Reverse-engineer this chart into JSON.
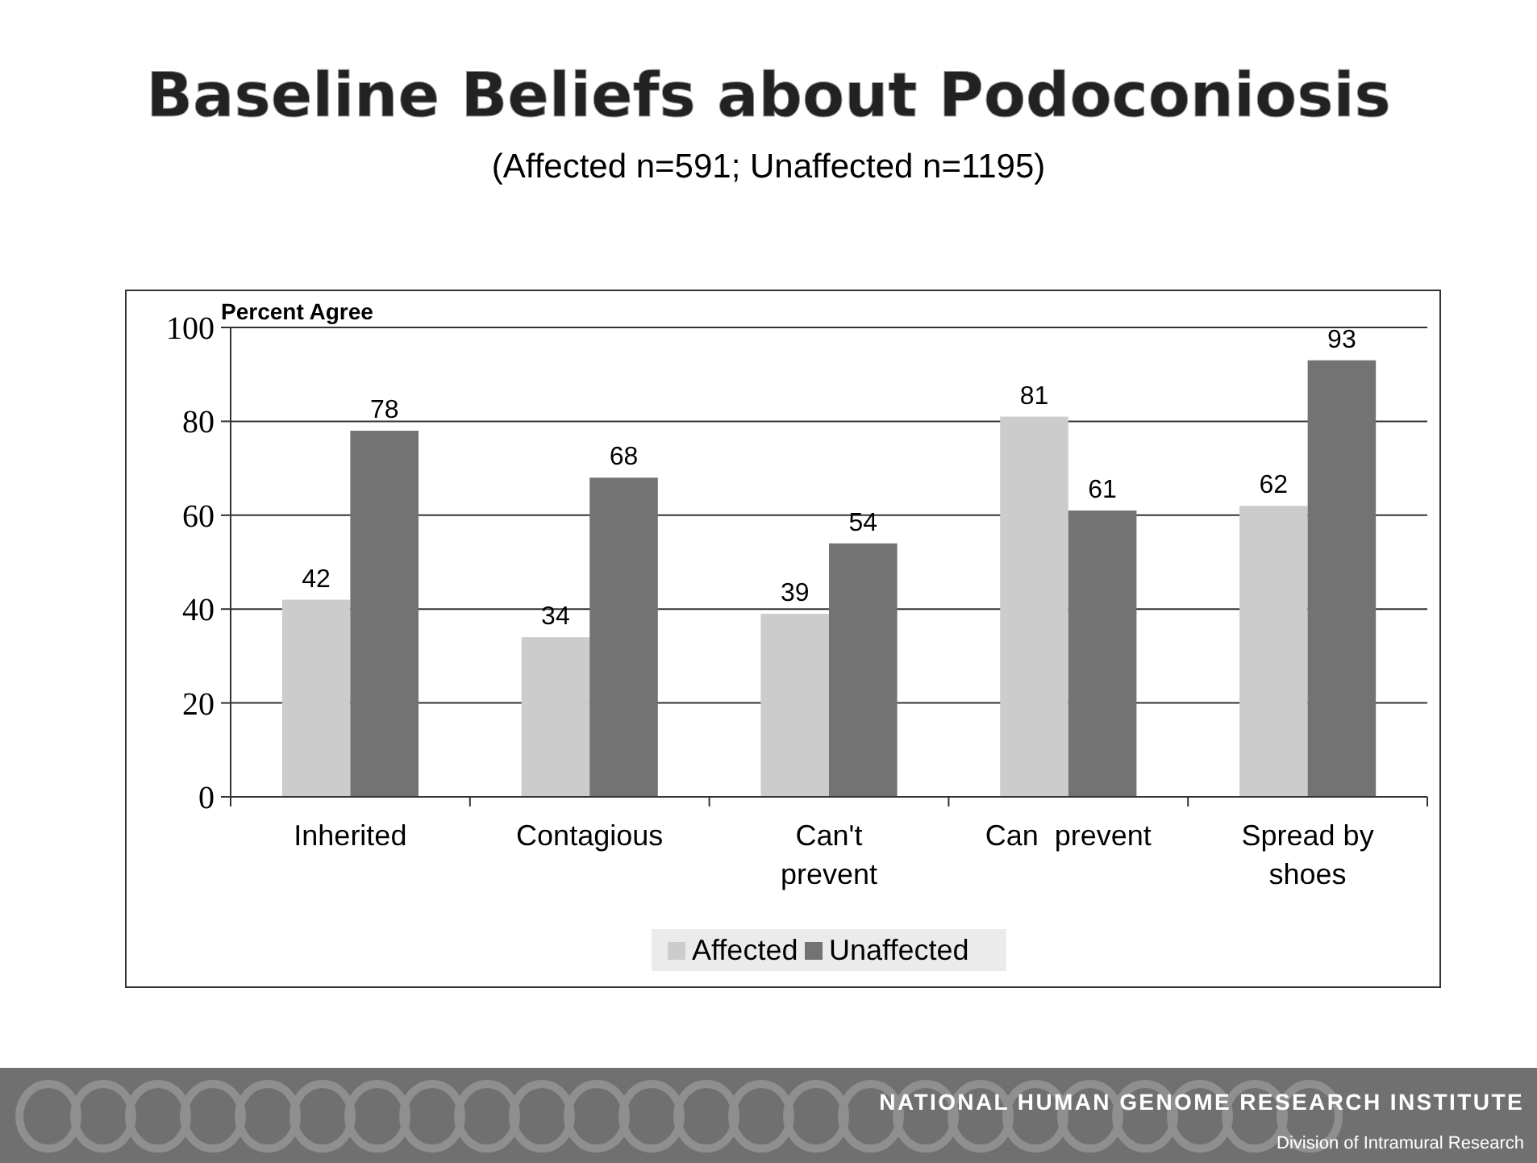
{
  "chart_data": {
    "type": "bar",
    "title": "Baseline Beliefs about Podoconiosis",
    "subtitle": "(Affected n=591; Unaffected n=1195)",
    "ylabel": "Percent Agree",
    "categories": [
      "Inherited",
      "Contagious",
      "Can't prevent",
      "Can  prevent",
      "Spread by shoes"
    ],
    "series": [
      {
        "name": "Affected",
        "color": "#cccccc",
        "values": [
          42,
          34,
          39,
          81,
          62
        ]
      },
      {
        "name": "Unaffected",
        "color": "#737373",
        "values": [
          78,
          68,
          54,
          61,
          93
        ]
      }
    ],
    "ylim": [
      0,
      100
    ],
    "yticks": [
      0,
      20,
      40,
      60,
      80,
      100
    ],
    "grid": "y",
    "legend": "bottom",
    "data_labels": true,
    "annotations": [
      "NATIONAL HUMAN GENOME RESEARCH INSTITUTE",
      "Division of Intramural Research"
    ]
  }
}
